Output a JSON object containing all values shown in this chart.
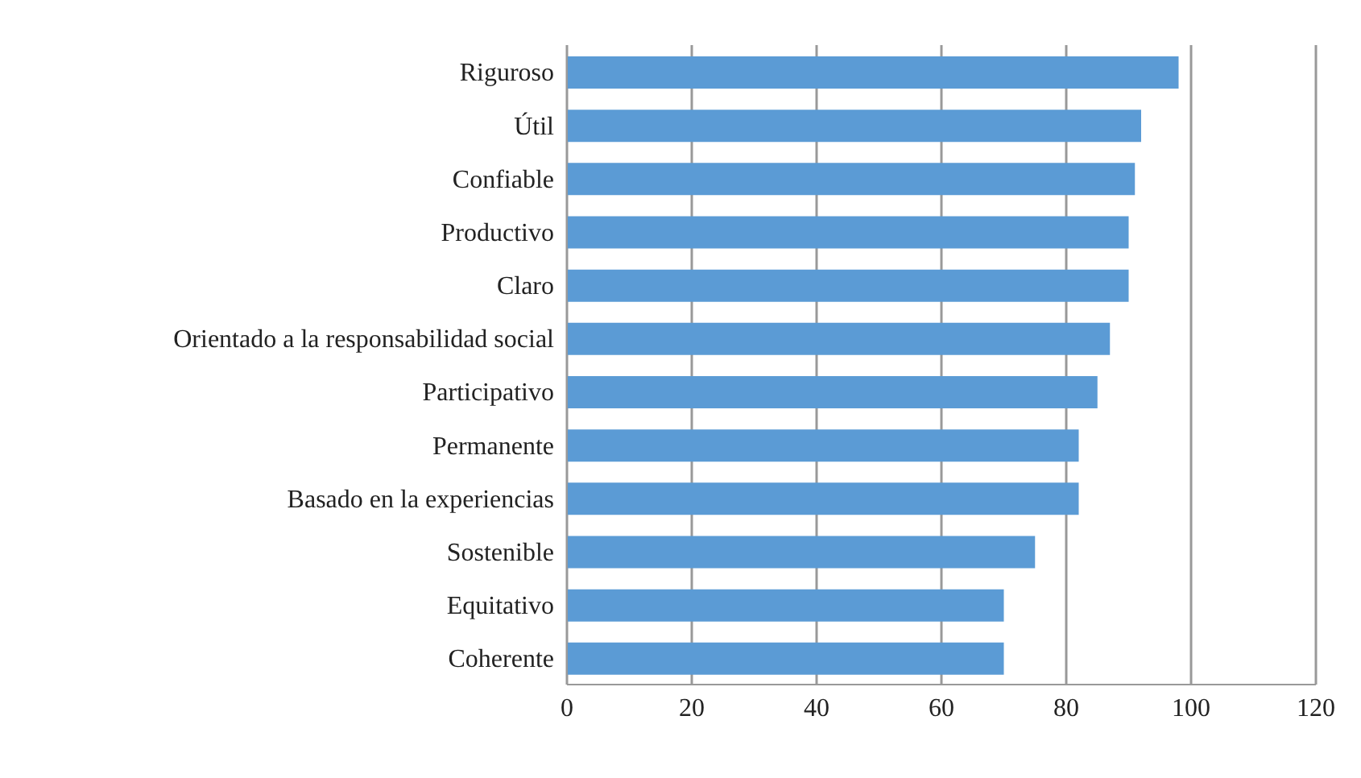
{
  "chart_data": {
    "type": "bar",
    "orientation": "horizontal",
    "categories": [
      "Riguroso",
      "Útil",
      "Confiable",
      "Productivo",
      "Claro",
      "Orientado a la responsabilidad social",
      "Participativo",
      "Permanente",
      "Basado en la  experiencias",
      "Sostenible",
      "Equitativo",
      "Coherente"
    ],
    "values": [
      98,
      92,
      91,
      90,
      90,
      87,
      85,
      82,
      82,
      75,
      70,
      70
    ],
    "color": "#5b9bd5",
    "xlim": [
      0,
      120
    ],
    "xticks": [
      0,
      20,
      40,
      60,
      80,
      100,
      120
    ],
    "grid": "x"
  }
}
